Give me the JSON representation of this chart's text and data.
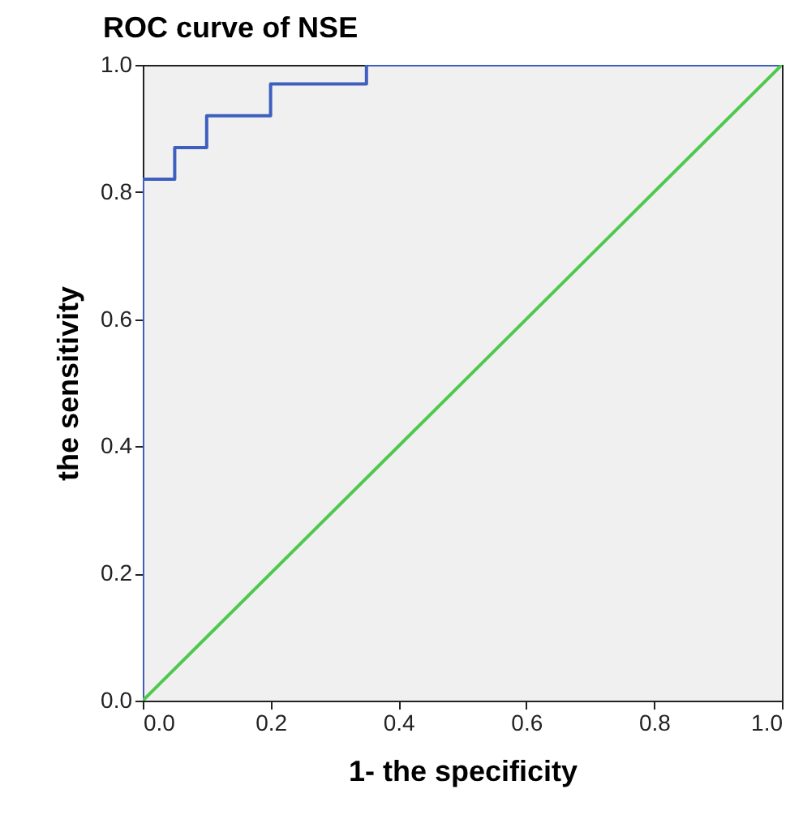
{
  "chart_data": {
    "type": "step",
    "title": "ROC curve of NSE",
    "xlabel": "1- the specificity",
    "ylabel": "the sensitivity",
    "xlim": [
      0,
      1
    ],
    "ylim": [
      0,
      1
    ],
    "xticks": [
      {
        "value": 0,
        "label": "0.0"
      },
      {
        "value": 0.2,
        "label": "0.2"
      },
      {
        "value": 0.4,
        "label": "0.4"
      },
      {
        "value": 0.6,
        "label": "0.6"
      },
      {
        "value": 0.8,
        "label": "0.8"
      },
      {
        "value": 1,
        "label": "1.0"
      }
    ],
    "yticks": [
      {
        "value": 0,
        "label": "0.0"
      },
      {
        "value": 0.2,
        "label": "0.2"
      },
      {
        "value": 0.4,
        "label": "0.4"
      },
      {
        "value": 0.6,
        "label": "0.6"
      },
      {
        "value": 0.8,
        "label": "0.8"
      },
      {
        "value": 1,
        "label": "1.0"
      }
    ],
    "grid": false,
    "series": [
      {
        "color": "#3f5fbf",
        "x": [
          0,
          0,
          0.05,
          0.1,
          0.2,
          0.35,
          1
        ],
        "values": [
          0,
          0.82,
          0.87,
          0.92,
          0.97,
          1,
          1
        ]
      },
      {
        "type": "line",
        "color": "#4ec94e",
        "x": [
          0,
          1
        ],
        "values": [
          0,
          1
        ]
      }
    ]
  }
}
